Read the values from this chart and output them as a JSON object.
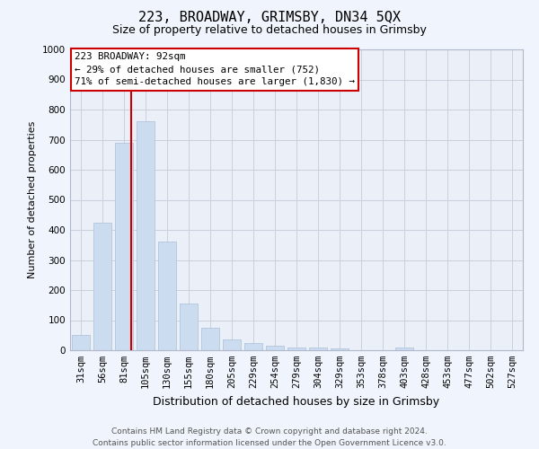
{
  "title": "223, BROADWAY, GRIMSBY, DN34 5QX",
  "subtitle": "Size of property relative to detached houses in Grimsby",
  "xlabel": "Distribution of detached houses by size in Grimsby",
  "ylabel": "Number of detached properties",
  "categories": [
    "31sqm",
    "56sqm",
    "81sqm",
    "105sqm",
    "130sqm",
    "155sqm",
    "180sqm",
    "205sqm",
    "229sqm",
    "254sqm",
    "279sqm",
    "304sqm",
    "329sqm",
    "353sqm",
    "378sqm",
    "403sqm",
    "428sqm",
    "453sqm",
    "477sqm",
    "502sqm",
    "527sqm"
  ],
  "values": [
    50,
    425,
    690,
    760,
    360,
    155,
    75,
    35,
    25,
    15,
    10,
    8,
    5,
    0,
    0,
    8,
    0,
    0,
    0,
    0,
    0
  ],
  "bar_color": "#ccdcf0",
  "bar_edge_color": "#aabdd8",
  "grid_color": "#c8d0de",
  "annotation_box_color": "#cc0000",
  "annotation_text": "223 BROADWAY: 92sqm\n← 29% of detached houses are smaller (752)\n71% of semi-detached houses are larger (1,830) →",
  "vline_color": "#cc0000",
  "vline_position": 2.35,
  "ylim": [
    0,
    1000
  ],
  "yticks": [
    0,
    100,
    200,
    300,
    400,
    500,
    600,
    700,
    800,
    900,
    1000
  ],
  "footer_line1": "Contains HM Land Registry data © Crown copyright and database right 2024.",
  "footer_line2": "Contains public sector information licensed under the Open Government Licence v3.0.",
  "bg_color": "#f0f4fc",
  "plot_bg_color": "#eaeff8",
  "title_fontsize": 11,
  "subtitle_fontsize": 9,
  "annotation_fontsize": 7.8,
  "ylabel_fontsize": 8,
  "xlabel_fontsize": 9,
  "tick_fontsize": 7.5,
  "footer_fontsize": 6.5
}
